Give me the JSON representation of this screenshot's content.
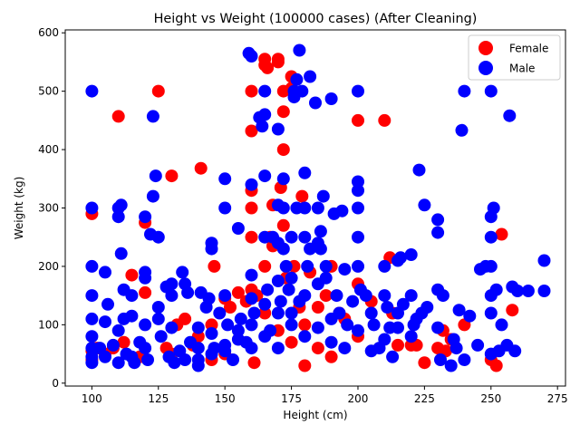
{
  "chart_data": {
    "type": "scatter",
    "title": "Height vs Weight (100000 cases) (After Cleaning)",
    "xlabel": "Height (cm)",
    "ylabel": "Weight (kg)",
    "xlim": [
      90,
      278
    ],
    "ylim": [
      -5,
      605
    ],
    "xticks": [
      100,
      125,
      150,
      175,
      200,
      225,
      250,
      275
    ],
    "yticks": [
      0,
      100,
      200,
      300,
      400,
      500,
      600
    ],
    "grid": false,
    "legend_position": "top-right",
    "series": [
      {
        "name": "Female",
        "color": "#ff0000",
        "points": [
          [
            100,
            290
          ],
          [
            100,
            55
          ],
          [
            100,
            40
          ],
          [
            102,
            60
          ],
          [
            105,
            50
          ],
          [
            108,
            60
          ],
          [
            110,
            457
          ],
          [
            112,
            70
          ],
          [
            115,
            185
          ],
          [
            118,
            45
          ],
          [
            120,
            155
          ],
          [
            120,
            275
          ],
          [
            125,
            500
          ],
          [
            128,
            60
          ],
          [
            130,
            355
          ],
          [
            132,
            100
          ],
          [
            135,
            110
          ],
          [
            138,
            65
          ],
          [
            140,
            80
          ],
          [
            141,
            368
          ],
          [
            145,
            100
          ],
          [
            146,
            200
          ],
          [
            150,
            145
          ],
          [
            152,
            130
          ],
          [
            155,
            155
          ],
          [
            158,
            140
          ],
          [
            160,
            500
          ],
          [
            160,
            432
          ],
          [
            160,
            330
          ],
          [
            160,
            300
          ],
          [
            160,
            250
          ],
          [
            160,
            160
          ],
          [
            161,
            35
          ],
          [
            162,
            150
          ],
          [
            165,
            555
          ],
          [
            165,
            545
          ],
          [
            166,
            540
          ],
          [
            165,
            200
          ],
          [
            167,
            250
          ],
          [
            168,
            305
          ],
          [
            168,
            235
          ],
          [
            170,
            550
          ],
          [
            170,
            555
          ],
          [
            172,
            500
          ],
          [
            172,
            465
          ],
          [
            172,
            400
          ],
          [
            172,
            270
          ],
          [
            171,
            335
          ],
          [
            173,
            180
          ],
          [
            175,
            525
          ],
          [
            175,
            505
          ],
          [
            176,
            200
          ],
          [
            178,
            130
          ],
          [
            179,
            320
          ],
          [
            180,
            30
          ],
          [
            182,
            190
          ],
          [
            185,
            130
          ],
          [
            188,
            150
          ],
          [
            190,
            200
          ],
          [
            193,
            120
          ],
          [
            195,
            110
          ],
          [
            200,
            450
          ],
          [
            200,
            170
          ],
          [
            205,
            140
          ],
          [
            210,
            450
          ],
          [
            212,
            215
          ],
          [
            213,
            120
          ],
          [
            215,
            65
          ],
          [
            220,
            65
          ],
          [
            222,
            65
          ],
          [
            225,
            35
          ],
          [
            230,
            60
          ],
          [
            232,
            90
          ],
          [
            233,
            55
          ],
          [
            235,
            75
          ],
          [
            240,
            100
          ],
          [
            250,
            40
          ],
          [
            252,
            30
          ],
          [
            254,
            255
          ],
          [
            258,
            125
          ],
          [
            165,
            120
          ],
          [
            170,
            90
          ],
          [
            175,
            70
          ],
          [
            185,
            60
          ],
          [
            190,
            45
          ],
          [
            150,
            50
          ],
          [
            145,
            40
          ],
          [
            130,
            50
          ],
          [
            180,
            100
          ],
          [
            200,
            80
          ]
        ]
      },
      {
        "name": "Male",
        "color": "#0000ff",
        "points": [
          [
            100,
            500
          ],
          [
            100,
            300
          ],
          [
            100,
            200
          ],
          [
            100,
            150
          ],
          [
            100,
            110
          ],
          [
            100,
            80
          ],
          [
            100,
            60
          ],
          [
            100,
            45
          ],
          [
            100,
            35
          ],
          [
            103,
            60
          ],
          [
            105,
            190
          ],
          [
            105,
            105
          ],
          [
            106,
            135
          ],
          [
            108,
            65
          ],
          [
            110,
            35
          ],
          [
            110,
            285
          ],
          [
            110,
            300
          ],
          [
            111,
            305
          ],
          [
            111,
            222
          ],
          [
            112,
            160
          ],
          [
            112,
            110
          ],
          [
            113,
            50
          ],
          [
            115,
            150
          ],
          [
            115,
            115
          ],
          [
            116,
            35
          ],
          [
            118,
            70
          ],
          [
            120,
            285
          ],
          [
            120,
            190
          ],
          [
            120,
            180
          ],
          [
            120,
            100
          ],
          [
            120,
            60
          ],
          [
            121,
            40
          ],
          [
            122,
            255
          ],
          [
            123,
            320
          ],
          [
            123,
            457
          ],
          [
            124,
            355
          ],
          [
            125,
            250
          ],
          [
            125,
            130
          ],
          [
            126,
            80
          ],
          [
            128,
            165
          ],
          [
            129,
            45
          ],
          [
            130,
            170
          ],
          [
            130,
            150
          ],
          [
            130,
            95
          ],
          [
            131,
            35
          ],
          [
            133,
            55
          ],
          [
            134,
            190
          ],
          [
            135,
            170
          ],
          [
            136,
            155
          ],
          [
            137,
            70
          ],
          [
            140,
            30
          ],
          [
            140,
            95
          ],
          [
            141,
            155
          ],
          [
            143,
            130
          ],
          [
            144,
            145
          ],
          [
            145,
            240
          ],
          [
            145,
            230
          ],
          [
            146,
            60
          ],
          [
            148,
            120
          ],
          [
            150,
            350
          ],
          [
            150,
            300
          ],
          [
            150,
            150
          ],
          [
            151,
            100
          ],
          [
            153,
            40
          ],
          [
            155,
            265
          ],
          [
            156,
            110
          ],
          [
            158,
            70
          ],
          [
            159,
            565
          ],
          [
            160,
            560
          ],
          [
            160,
            340
          ],
          [
            160,
            185
          ],
          [
            160,
            145
          ],
          [
            161,
            120
          ],
          [
            163,
            455
          ],
          [
            164,
            440
          ],
          [
            165,
            500
          ],
          [
            165,
            460
          ],
          [
            165,
            355
          ],
          [
            165,
            250
          ],
          [
            166,
            160
          ],
          [
            167,
            90
          ],
          [
            168,
            250
          ],
          [
            170,
            435
          ],
          [
            170,
            305
          ],
          [
            170,
            240
          ],
          [
            170,
            175
          ],
          [
            171,
            140
          ],
          [
            172,
            350
          ],
          [
            172,
            300
          ],
          [
            172,
            230
          ],
          [
            173,
            200
          ],
          [
            174,
            160
          ],
          [
            175,
            250
          ],
          [
            175,
            180
          ],
          [
            176,
            500
          ],
          [
            176,
            490
          ],
          [
            177,
            520
          ],
          [
            177,
            300
          ],
          [
            178,
            570
          ],
          [
            179,
            500
          ],
          [
            180,
            300
          ],
          [
            180,
            250
          ],
          [
            180,
            360
          ],
          [
            181,
            200
          ],
          [
            182,
            525
          ],
          [
            182,
            230
          ],
          [
            184,
            480
          ],
          [
            185,
            300
          ],
          [
            185,
            240
          ],
          [
            186,
            260
          ],
          [
            186,
            230
          ],
          [
            187,
            320
          ],
          [
            188,
            200
          ],
          [
            188,
            180
          ],
          [
            190,
            487
          ],
          [
            191,
            290
          ],
          [
            192,
            150
          ],
          [
            193,
            120
          ],
          [
            194,
            295
          ],
          [
            195,
            195
          ],
          [
            196,
            100
          ],
          [
            198,
            140
          ],
          [
            200,
            500
          ],
          [
            200,
            345
          ],
          [
            200,
            330
          ],
          [
            200,
            300
          ],
          [
            200,
            250
          ],
          [
            200,
            200
          ],
          [
            201,
            160
          ],
          [
            203,
            150
          ],
          [
            205,
            120
          ],
          [
            206,
            100
          ],
          [
            208,
            60
          ],
          [
            210,
            200
          ],
          [
            210,
            150
          ],
          [
            211,
            130
          ],
          [
            212,
            95
          ],
          [
            213,
            45
          ],
          [
            215,
            210
          ],
          [
            215,
            120
          ],
          [
            216,
            215
          ],
          [
            217,
            135
          ],
          [
            220,
            220
          ],
          [
            220,
            150
          ],
          [
            221,
            100
          ],
          [
            222,
            110
          ],
          [
            223,
            365
          ],
          [
            224,
            120
          ],
          [
            225,
            305
          ],
          [
            226,
            130
          ],
          [
            230,
            280
          ],
          [
            230,
            258
          ],
          [
            230,
            160
          ],
          [
            230,
            95
          ],
          [
            231,
            40
          ],
          [
            232,
            150
          ],
          [
            235,
            30
          ],
          [
            236,
            75
          ],
          [
            237,
            60
          ],
          [
            238,
            125
          ],
          [
            239,
            433
          ],
          [
            240,
            500
          ],
          [
            240,
            40
          ],
          [
            242,
            115
          ],
          [
            245,
            65
          ],
          [
            246,
            195
          ],
          [
            248,
            200
          ],
          [
            250,
            500
          ],
          [
            250,
            285
          ],
          [
            250,
            250
          ],
          [
            250,
            200
          ],
          [
            250,
            150
          ],
          [
            250,
            120
          ],
          [
            250,
            50
          ],
          [
            251,
            300
          ],
          [
            252,
            160
          ],
          [
            253,
            55
          ],
          [
            254,
            100
          ],
          [
            256,
            65
          ],
          [
            257,
            458
          ],
          [
            258,
            165
          ],
          [
            259,
            55
          ],
          [
            260,
            158
          ],
          [
            264,
            158
          ],
          [
            270,
            210
          ],
          [
            270,
            158
          ],
          [
            105,
            45
          ],
          [
            110,
            90
          ],
          [
            115,
            45
          ],
          [
            125,
            110
          ],
          [
            135,
            40
          ],
          [
            140,
            60
          ],
          [
            145,
            85
          ],
          [
            150,
            55
          ],
          [
            155,
            75
          ],
          [
            160,
            60
          ],
          [
            165,
            80
          ],
          [
            170,
            60
          ],
          [
            175,
            120
          ],
          [
            180,
            80
          ],
          [
            185,
            95
          ],
          [
            190,
            70
          ],
          [
            195,
            60
          ],
          [
            200,
            90
          ],
          [
            205,
            55
          ],
          [
            210,
            75
          ],
          [
            215,
            95
          ],
          [
            220,
            80
          ],
          [
            175,
            100
          ],
          [
            180,
            150
          ],
          [
            185,
            170
          ],
          [
            190,
            110
          ],
          [
            160,
            100
          ],
          [
            155,
            90
          ],
          [
            150,
            65
          ],
          [
            145,
            50
          ],
          [
            140,
            40
          ],
          [
            165,
            135
          ],
          [
            170,
            120
          ],
          [
            178,
            140
          ]
        ]
      }
    ]
  }
}
